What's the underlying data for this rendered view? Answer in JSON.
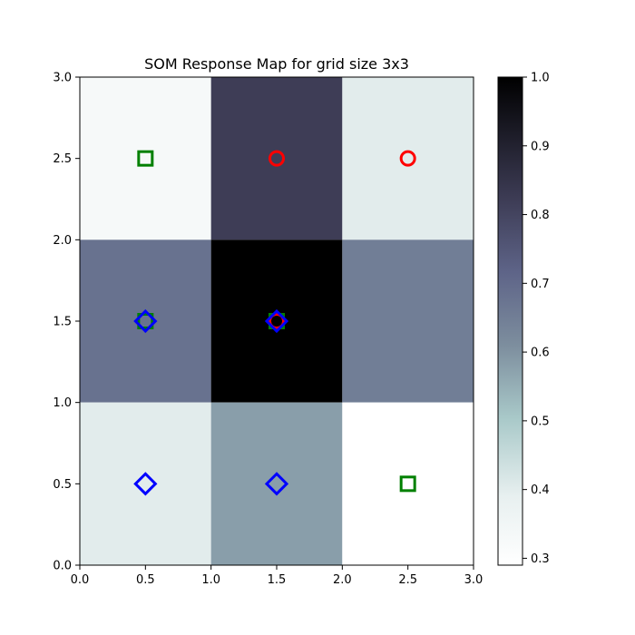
{
  "chart_data": {
    "type": "heatmap",
    "title": "SOM Response Map for grid size 3x3",
    "xlabel": "",
    "ylabel": "",
    "xlim": [
      0.0,
      3.0
    ],
    "ylim": [
      0.0,
      3.0
    ],
    "x_ticks": [
      "0.0",
      "0.5",
      "1.0",
      "1.5",
      "2.0",
      "2.5",
      "3.0"
    ],
    "y_ticks": [
      "0.0",
      "0.5",
      "1.0",
      "1.5",
      "2.0",
      "2.5",
      "3.0"
    ],
    "colormap": "bone_r",
    "grid": false,
    "cells": [
      [
        0.33,
        0.82,
        0.4
      ],
      [
        0.68,
        1.0,
        0.65
      ],
      [
        0.4,
        0.58,
        0.29
      ]
    ],
    "markers": [
      {
        "x": 0.5,
        "y": 2.5,
        "shape": "square",
        "color": "#008000"
      },
      {
        "x": 1.5,
        "y": 2.5,
        "shape": "circle",
        "color": "#ff0000"
      },
      {
        "x": 2.5,
        "y": 2.5,
        "shape": "circle",
        "color": "#ff0000"
      },
      {
        "x": 0.5,
        "y": 1.5,
        "shape": "square",
        "color": "#008000"
      },
      {
        "x": 0.5,
        "y": 1.5,
        "shape": "diamond",
        "color": "#0000ff"
      },
      {
        "x": 1.5,
        "y": 1.5,
        "shape": "square",
        "color": "#008000"
      },
      {
        "x": 1.5,
        "y": 1.5,
        "shape": "circle",
        "color": "#ff0000"
      },
      {
        "x": 1.5,
        "y": 1.5,
        "shape": "diamond",
        "color": "#0000ff"
      },
      {
        "x": 0.5,
        "y": 0.5,
        "shape": "diamond",
        "color": "#0000ff"
      },
      {
        "x": 1.5,
        "y": 0.5,
        "shape": "diamond",
        "color": "#0000ff"
      },
      {
        "x": 2.5,
        "y": 0.5,
        "shape": "square",
        "color": "#008000"
      }
    ],
    "colorbar": {
      "min": 0.29,
      "max": 1.0,
      "ticks": [
        0.3,
        0.4,
        0.5,
        0.6,
        0.7,
        0.8,
        0.9,
        1.0
      ],
      "tick_labels": [
        "0.3",
        "0.4",
        "0.5",
        "0.6",
        "0.7",
        "0.8",
        "0.9",
        "1.0"
      ]
    }
  }
}
